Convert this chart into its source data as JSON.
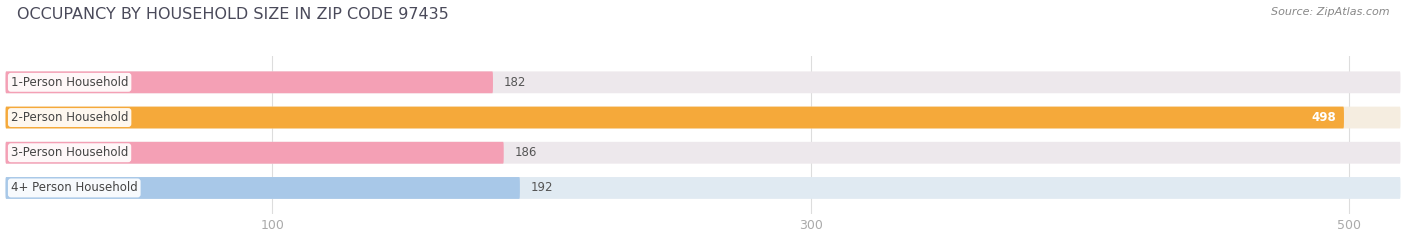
{
  "title": "OCCUPANCY BY HOUSEHOLD SIZE IN ZIP CODE 97435",
  "source": "Source: ZipAtlas.com",
  "categories": [
    "1-Person Household",
    "2-Person Household",
    "3-Person Household",
    "4+ Person Household"
  ],
  "values": [
    182,
    498,
    186,
    192
  ],
  "bar_colors": [
    "#f4a0b5",
    "#f5a93a",
    "#f4a0b5",
    "#a8c8e8"
  ],
  "bg_colors": [
    "#ede8ec",
    "#f5ede0",
    "#ede8ec",
    "#e0eaf2"
  ],
  "value_label_colors": [
    "#555555",
    "#ffffff",
    "#555555",
    "#555555"
  ],
  "xlim_min": 0,
  "xlim_max": 520,
  "xticks": [
    100,
    300,
    500
  ],
  "title_color": "#4a4a5a",
  "source_color": "#888888",
  "tick_color": "#aaaaaa",
  "grid_color": "#dddddd",
  "figure_bg": "#ffffff",
  "axes_bg": "#ffffff",
  "title_fontsize": 11.5,
  "source_fontsize": 8,
  "bar_label_fontsize": 8.5,
  "value_fontsize": 8.5,
  "tick_fontsize": 9,
  "bar_height": 0.62,
  "bar_gap": 1.0
}
